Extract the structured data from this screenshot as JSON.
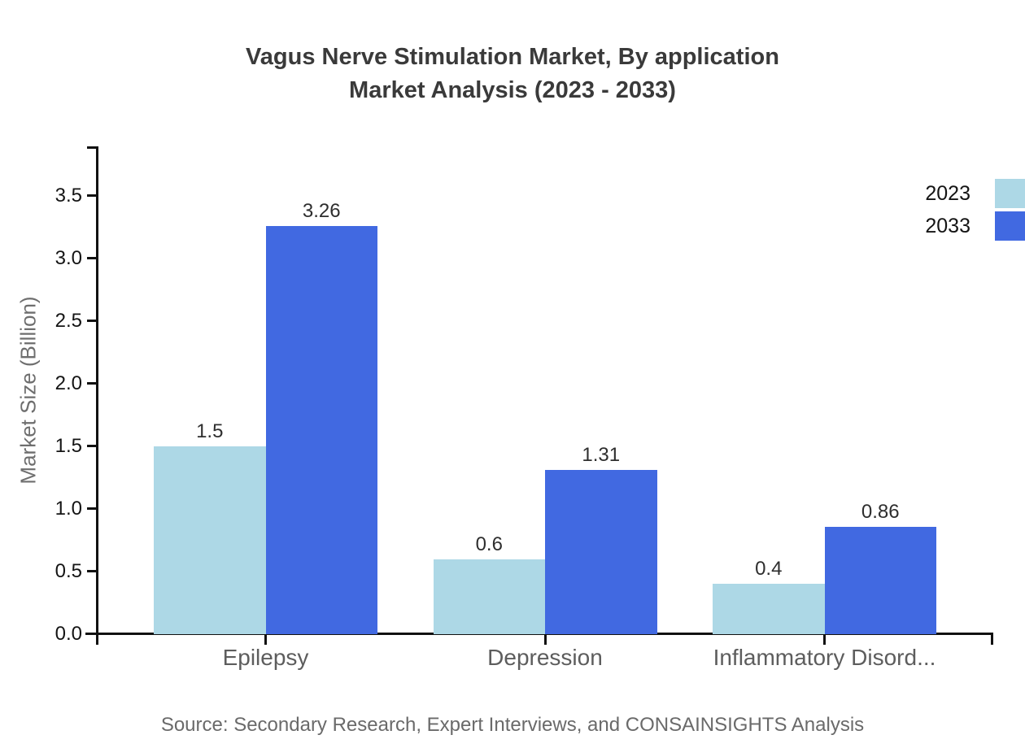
{
  "title": {
    "line1": "Vagus Nerve Stimulation Market, By application",
    "line2": "Market Analysis (2023 - 2033)"
  },
  "source": "Source: Secondary Research, Expert Interviews, and CONSAINSIGHTS Analysis",
  "chart_data": {
    "type": "bar",
    "title": "Vagus Nerve Stimulation Market, By application Market Analysis (2023 - 2033)",
    "categories": [
      "Epilepsy",
      "Depression",
      "Inflammatory Disord..."
    ],
    "series": [
      {
        "name": "2023",
        "color": "#ADD8E6",
        "values": [
          1.5,
          0.6,
          0.4
        ]
      },
      {
        "name": "2033",
        "color": "#4169E1",
        "values": [
          3.26,
          1.31,
          0.86
        ]
      }
    ],
    "xlabel": "",
    "ylabel": "Market Size (Billion)",
    "ylim": [
      0,
      3.9
    ],
    "yticks": [
      0.0,
      0.5,
      1.0,
      1.5,
      2.0,
      2.5,
      3.0,
      3.5
    ],
    "grid": false,
    "value_labels": true,
    "legend_position": "upper right outside"
  }
}
